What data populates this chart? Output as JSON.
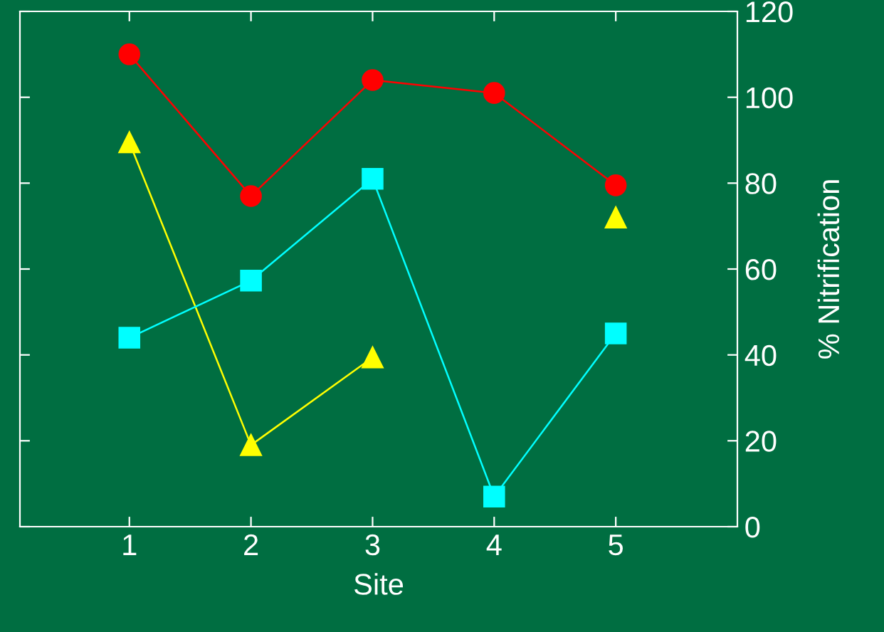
{
  "chart_data": {
    "type": "line",
    "xlabel": "Site",
    "ylabel": "% Nitrification",
    "x": [
      1,
      2,
      3,
      4,
      5
    ],
    "xlim": [
      0.1,
      6
    ],
    "xticks": [
      1,
      2,
      3,
      4,
      5
    ],
    "ylim": [
      0,
      120
    ],
    "yticks": [
      0,
      20,
      40,
      60,
      80,
      100,
      120
    ],
    "grid": false,
    "legend": false,
    "series": [
      {
        "color": "#ff0000",
        "marker": "circle",
        "values": [
          110,
          77,
          104,
          101,
          79.5
        ]
      },
      {
        "color": "#ffff00",
        "marker": "triangle",
        "values": [
          89.5,
          19,
          39.4,
          null,
          72
        ]
      },
      {
        "color": "#00ffff",
        "marker": "square",
        "values": [
          44,
          57.3,
          81,
          7,
          45
        ]
      }
    ]
  }
}
